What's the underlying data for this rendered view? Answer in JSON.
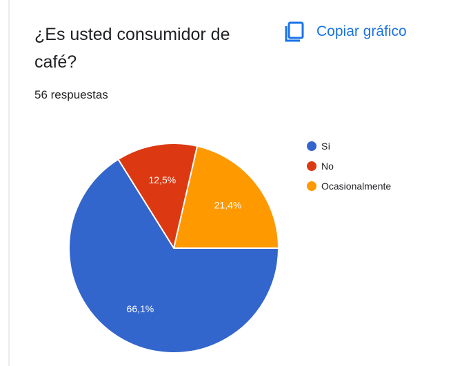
{
  "question": {
    "title": "¿Es usted consumidor de café?",
    "response_count": "56 respuestas"
  },
  "actions": {
    "copy_label": "Copiar gráfico",
    "copy_icon": "copy-icon"
  },
  "colors": {
    "accent": "#1a73e8",
    "text": "#202124"
  },
  "chart_data": {
    "type": "pie",
    "title": "",
    "categories": [
      "Sí",
      "No",
      "Ocasionalmente"
    ],
    "values": [
      66.1,
      12.5,
      21.4
    ],
    "labels": [
      "66,1%",
      "12,5%",
      "21,4%"
    ],
    "colors": [
      "#3366cc",
      "#dc3912",
      "#ff9900"
    ],
    "legend": "right"
  }
}
